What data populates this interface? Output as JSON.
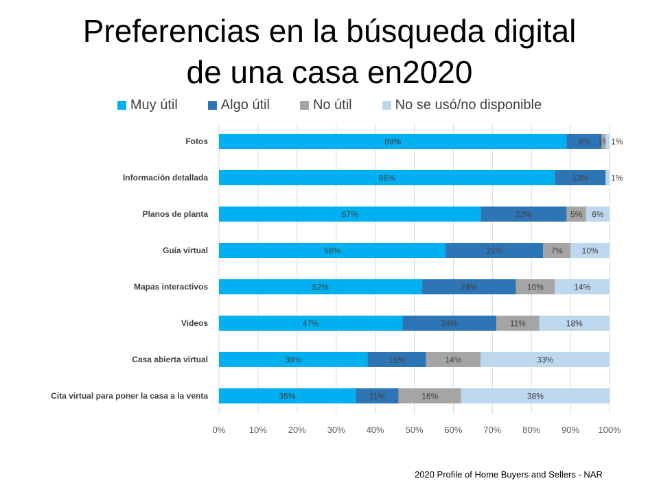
{
  "chart_data": {
    "type": "bar",
    "orientation": "horizontal",
    "stacked": "percent",
    "title": "Preferencias en la búsqueda digital de una casa en2020",
    "title_lines": [
      "Preferencias en la búsqueda digital",
      "de una casa en2020"
    ],
    "categories": [
      "Fotos",
      "Información detallada",
      "Planos de planta",
      "Guía virtual",
      "Mapas interactivos",
      "Videos",
      "Casa abierta virtual",
      "Cita virtual para poner la casa a la venta"
    ],
    "series": [
      {
        "name": "Muy útil",
        "color": "#00B0F0",
        "values": [
          89,
          86,
          67,
          58,
          52,
          47,
          38,
          35
        ]
      },
      {
        "name": "Algo útil",
        "color": "#2E75B6",
        "values": [
          9,
          13,
          22,
          25,
          24,
          24,
          15,
          11
        ]
      },
      {
        "name": "No útil",
        "color": "#A5A5A5",
        "values": [
          1,
          0,
          5,
          7,
          10,
          11,
          14,
          16
        ]
      },
      {
        "name": "No se usó/no disponible",
        "color": "#BDD7EE",
        "values": [
          1,
          1,
          6,
          10,
          14,
          18,
          33,
          38
        ]
      }
    ],
    "xlim": [
      0,
      100
    ],
    "x_ticks": [
      "0%",
      "10%",
      "20%",
      "30%",
      "40%",
      "50%",
      "60%",
      "70%",
      "80%",
      "90%",
      "100%"
    ],
    "grid": true,
    "legend_position": "top",
    "data_labels": true
  },
  "source": "2020 Profile of Home Buyers and Sellers - NAR"
}
